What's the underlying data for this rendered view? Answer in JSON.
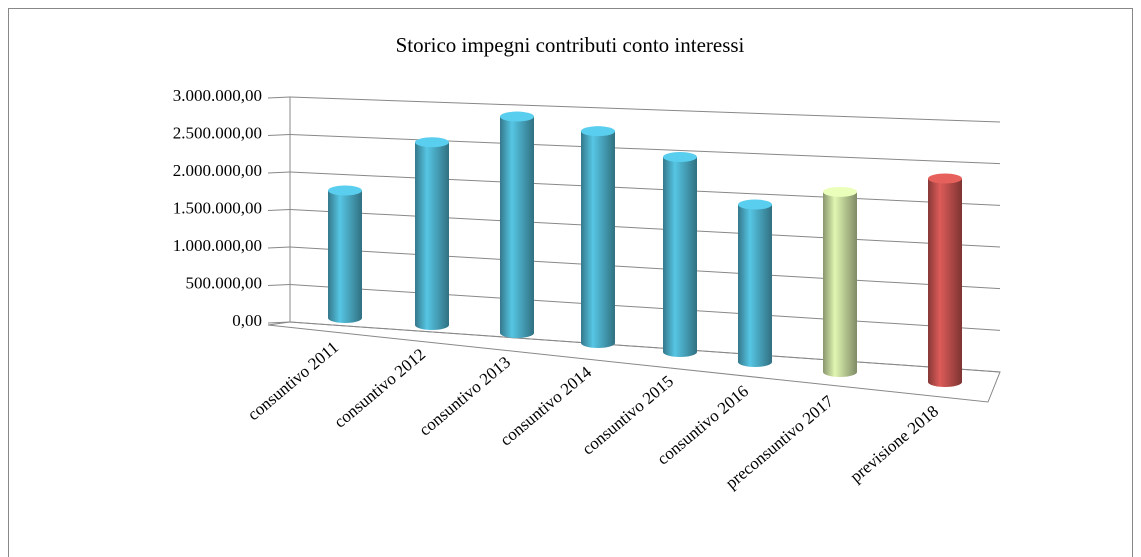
{
  "chart_data": {
    "type": "bar3d",
    "title": "Storico impegni contributi conto interessi",
    "categories": [
      "consuntivo 2011",
      "consuntivo 2012",
      "consuntivo 2013",
      "consuntivo 2014",
      "consuntivo 2015",
      "consuntivo 2016",
      "preconsuntivo 2017",
      "previsione 2018"
    ],
    "values": [
      1700000,
      2400000,
      2800000,
      2700000,
      2450000,
      1950000,
      2200000,
      2450000
    ],
    "colors": [
      "#4bacc6",
      "#4bacc6",
      "#4bacc6",
      "#4bacc6",
      "#4bacc6",
      "#4bacc6",
      "#c3d69b",
      "#c0504d"
    ],
    "ylim": [
      0,
      3000000
    ],
    "yticks": [
      {
        "value": 0,
        "label": "0,00"
      },
      {
        "value": 500000,
        "label": "500.000,00"
      },
      {
        "value": 1000000,
        "label": "1.000.000,00"
      },
      {
        "value": 1500000,
        "label": "1.500.000,00"
      },
      {
        "value": 2000000,
        "label": "2.000.000,00"
      },
      {
        "value": 2500000,
        "label": "2.500.000,00"
      },
      {
        "value": 3000000,
        "label": "3.000.000,00"
      }
    ],
    "grid": true
  }
}
